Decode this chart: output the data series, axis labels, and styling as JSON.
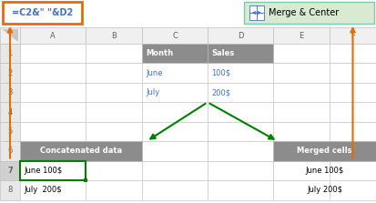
{
  "fig_width": 4.13,
  "fig_height": 2.23,
  "dpi": 100,
  "bg_color": "#ffffff",
  "col_labels": [
    "A",
    "B",
    "C",
    "D",
    "E",
    "F"
  ],
  "header_bg": "#8c8c8c",
  "header_fg": "#ffffff",
  "blue_fg": "#4472c4",
  "orange_color": "#e36c09",
  "green_color": "#008000",
  "merge_bg": "#d9ead3",
  "selected_border": "#008000",
  "formula_box_text": "=C2&\" \"&D2",
  "merge_center_text": "Merge & Center",
  "concat_header": "Concatenated data",
  "merged_header": "Merged cells",
  "c_header": "Month",
  "d_header": "Sales",
  "data_rows": [
    [
      "June",
      "100$"
    ],
    [
      "July",
      "200$"
    ]
  ],
  "concat_results": [
    "June 100$",
    "July  200$"
  ],
  "merged_results": [
    "June 100$",
    "July 200$"
  ],
  "grid_color": "#c0c0c0",
  "row_num_color": "#606060",
  "col_hdr_color": "#606060"
}
